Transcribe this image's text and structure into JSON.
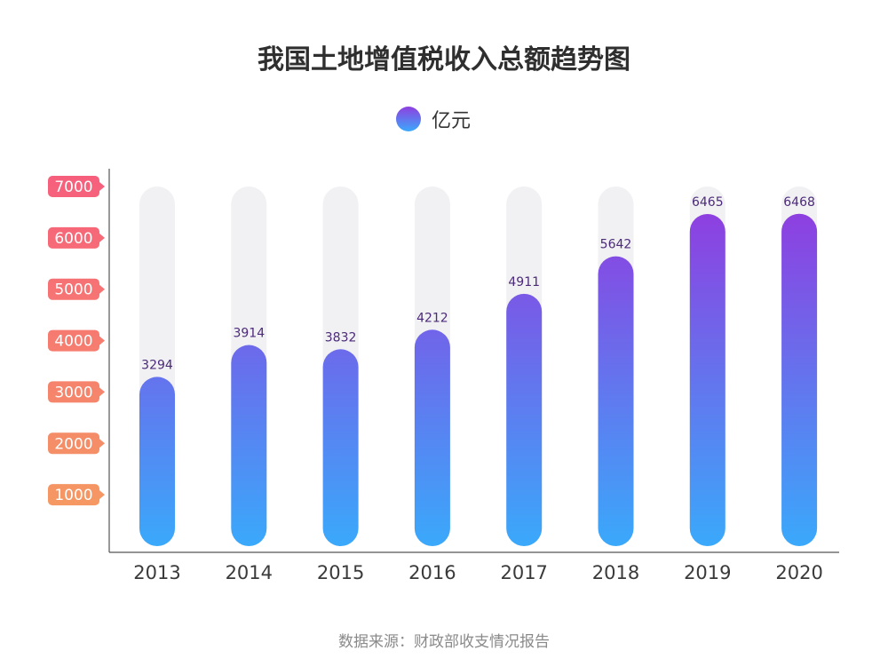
{
  "chart_data": {
    "type": "bar",
    "title": "我国土地增值税收入总额趋势图",
    "categories": [
      "2013",
      "2014",
      "2015",
      "2016",
      "2017",
      "2018",
      "2019",
      "2020"
    ],
    "series": [
      {
        "name": "亿元",
        "values": [
          3294,
          3914,
          3832,
          4212,
          4911,
          5642,
          6465,
          6468
        ]
      }
    ],
    "yticks": [
      "1000",
      "2000",
      "3000",
      "4000",
      "5000",
      "6000",
      "7000"
    ],
    "ylim": [
      0,
      7000
    ],
    "legend": "top-center",
    "grid": false,
    "colors": {
      "bar_top": "#8e3fe0",
      "bar_bottom": "#3aa9fb",
      "track": "#f1f1f3",
      "tick_badge_top": "#f65f7c",
      "tick_badge_bottom": "#f59a62"
    }
  },
  "source": "数据来源：财政部收支情况报告"
}
